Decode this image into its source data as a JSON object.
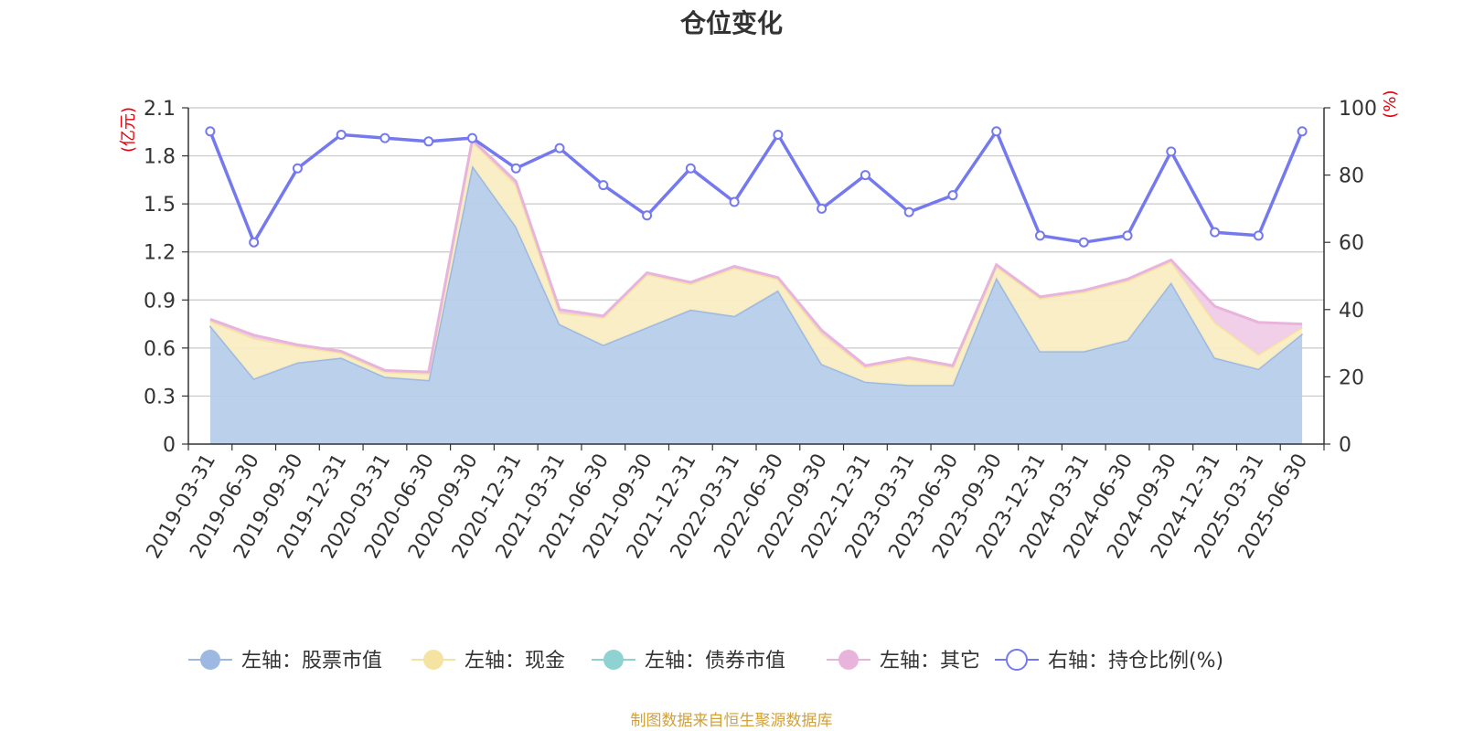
{
  "chart_data": {
    "type": "area",
    "title": "仓位变化",
    "ylabel_left": "(亿元)",
    "ylabel_right": "(%)",
    "ylim_left": [
      0,
      2.1
    ],
    "yticks_left": [
      "0",
      "0.3",
      "0.6",
      "0.9",
      "1.2",
      "1.5",
      "1.8",
      "2.1"
    ],
    "ylim_right": [
      0,
      100
    ],
    "yticks_right": [
      "0",
      "20",
      "40",
      "60",
      "80",
      "100"
    ],
    "grid": true,
    "legend_position": "bottom",
    "categories": [
      "2019-03-31",
      "2019-06-30",
      "2019-09-30",
      "2019-12-31",
      "2020-03-31",
      "2020-06-30",
      "2020-09-30",
      "2020-12-31",
      "2021-03-31",
      "2021-06-30",
      "2021-09-30",
      "2021-12-31",
      "2022-03-31",
      "2022-06-30",
      "2022-09-30",
      "2022-12-31",
      "2023-03-31",
      "2023-06-30",
      "2023-09-30",
      "2023-12-31",
      "2024-03-31",
      "2024-06-30",
      "2024-09-30",
      "2024-12-31",
      "2025-03-31",
      "2025-06-30"
    ],
    "series": [
      {
        "name": "左轴：股票市值",
        "axis": "left",
        "color": "#9db9e1",
        "fill": "#b7cdea",
        "values": [
          0.74,
          0.41,
          0.51,
          0.54,
          0.42,
          0.4,
          1.74,
          1.36,
          0.75,
          0.62,
          0.73,
          0.84,
          0.8,
          0.96,
          0.5,
          0.39,
          0.37,
          0.37,
          1.04,
          0.58,
          0.58,
          0.65,
          1.01,
          0.54,
          0.47,
          0.69
        ]
      },
      {
        "name": "左轴：现金",
        "axis": "left",
        "color": "#f5e4a1",
        "fill": "#faedc3",
        "values": [
          0.03,
          0.25,
          0.1,
          0.03,
          0.03,
          0.04,
          0.15,
          0.26,
          0.07,
          0.17,
          0.33,
          0.16,
          0.3,
          0.07,
          0.19,
          0.09,
          0.16,
          0.11,
          0.07,
          0.33,
          0.37,
          0.37,
          0.13,
          0.22,
          0.09,
          0.04
        ]
      },
      {
        "name": "左轴：债券市值",
        "axis": "left",
        "color": "#8fd2d2",
        "fill": "#a9dcdc",
        "values": [
          0,
          0,
          0,
          0,
          0,
          0,
          0,
          0,
          0,
          0,
          0,
          0,
          0,
          0,
          0,
          0,
          0,
          0,
          0,
          0,
          0,
          0,
          0,
          0,
          0,
          0
        ]
      },
      {
        "name": "左轴：其它",
        "axis": "left",
        "color": "#e8b4dc",
        "fill": "#f0cce8",
        "values": [
          0.01,
          0.02,
          0.01,
          0.01,
          0.01,
          0.01,
          0.01,
          0.02,
          0.02,
          0.01,
          0.01,
          0.01,
          0.01,
          0.01,
          0.02,
          0.01,
          0.01,
          0.01,
          0.01,
          0.01,
          0.01,
          0.01,
          0.01,
          0.1,
          0.2,
          0.02
        ]
      },
      {
        "name": "右轴：持仓比例(%)",
        "axis": "right",
        "color": "#7479ef",
        "values": [
          93,
          60,
          82,
          92,
          91,
          90,
          91,
          82,
          88,
          77,
          68,
          82,
          72,
          92,
          70,
          80,
          69,
          74,
          93,
          62,
          60,
          62,
          87,
          63,
          62,
          93
        ]
      }
    ]
  },
  "footer": {
    "source": "制图数据来自恒生聚源数据库"
  }
}
